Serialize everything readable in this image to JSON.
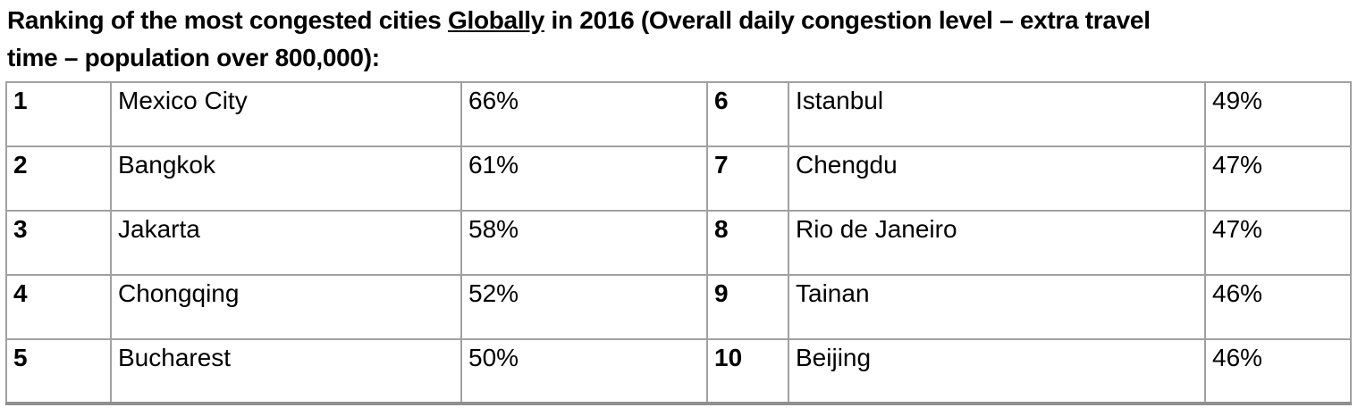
{
  "title": {
    "pre": "Ranking of the most congested cities ",
    "underlined": "Globally",
    "post_line1": " in 2016 (Overall daily congestion level – extra travel",
    "line2": "time – population over 800,000):"
  },
  "table": {
    "description": "Two side-by-side rank/city/congestion-percentage column groups",
    "rows": [
      {
        "rank_left": "1",
        "city_left": "Mexico City",
        "value_left": "66%",
        "rank_right": "6",
        "city_right": "Istanbul",
        "value_right": "49%"
      },
      {
        "rank_left": "2",
        "city_left": "Bangkok",
        "value_left": "61%",
        "rank_right": "7",
        "city_right": "Chengdu",
        "value_right": "47%"
      },
      {
        "rank_left": "3",
        "city_left": "Jakarta",
        "value_left": "58%",
        "rank_right": "8",
        "city_right": "Rio de Janeiro",
        "value_right": "47%"
      },
      {
        "rank_left": "4",
        "city_left": "Chongqing",
        "value_left": "52%",
        "rank_right": "9",
        "city_right": "Tainan",
        "value_right": "46%"
      },
      {
        "rank_left": "5",
        "city_left": "Bucharest",
        "value_left": "50%",
        "rank_right": "10",
        "city_right": "Beijing",
        "value_right": "46%"
      }
    ]
  },
  "colors": {
    "background": "#ffffff",
    "text": "#000000",
    "table_border": "#a1a1a1",
    "table_bottom_border": "#8f8f8f"
  }
}
